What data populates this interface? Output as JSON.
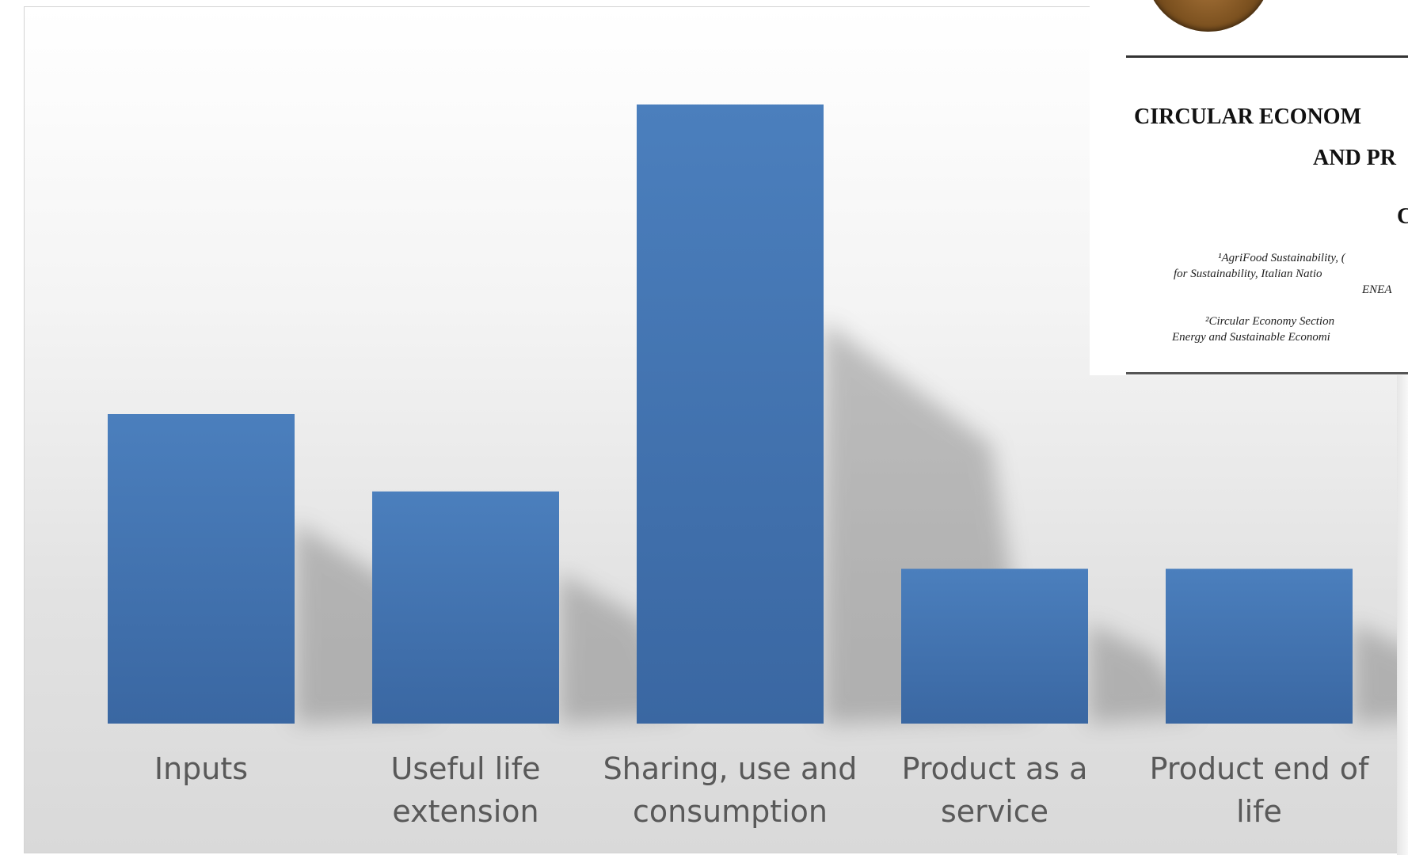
{
  "chart_data": {
    "type": "bar",
    "title": "",
    "xlabel": "",
    "ylabel": "",
    "categories": [
      [
        "Inputs"
      ],
      [
        "Useful life",
        "extension"
      ],
      [
        "Sharing, use and",
        "consumption"
      ],
      [
        "Product as a",
        "service"
      ],
      [
        "Product end of",
        "life"
      ]
    ],
    "values": [
      4,
      3,
      8,
      2,
      2
    ],
    "ylim": [
      0,
      8.4
    ],
    "grid": false,
    "legend": "none",
    "bar_color_top": "#4b7fbd",
    "bar_color_bottom": "#3a67a2"
  },
  "paper_inset": {
    "title_line_1": "CIRCULAR ECONOM",
    "title_line_2": "AND PR",
    "author_initial": "C",
    "affiliation_1": "¹AgriFood Sustainability, (",
    "affiliation_2": "for Sustainability, Italian Natio",
    "affiliation_3": "ENEA",
    "affiliation_4": "²Circular Economy Section",
    "affiliation_5": "Energy and Sustainable Economi"
  }
}
